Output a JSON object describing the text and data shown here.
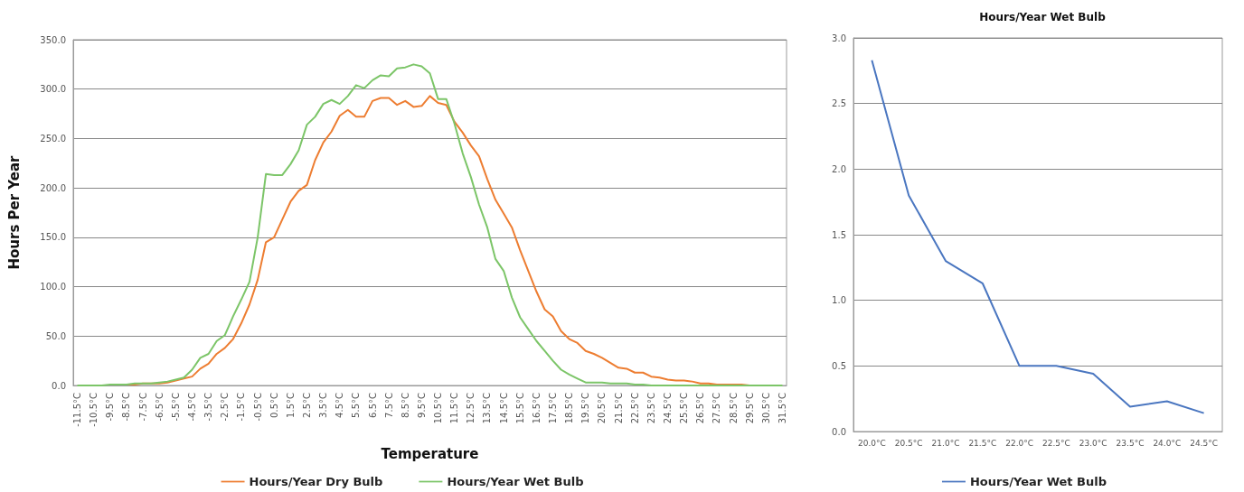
{
  "chart_data": [
    {
      "type": "line",
      "xlabel": "Temperature",
      "ylabel": "Hours Per Year",
      "categories": [
        "-11.5°C",
        null,
        "-10.5°C",
        null,
        "-9.5°C",
        null,
        "-8.5°C",
        null,
        "-7.5°C",
        null,
        "-6.5°C",
        null,
        "-5.5°C",
        null,
        "-4.5°C",
        null,
        "-3.5°C",
        null,
        "-2.5°C",
        null,
        "-1.5°C",
        null,
        "-0.5°C",
        null,
        "0.5°C",
        null,
        "1.5°C",
        null,
        "2.5°C",
        null,
        "3.5°C",
        null,
        "4.5°C",
        null,
        "5.5°C",
        null,
        "6.5°C",
        null,
        "7.5°C",
        null,
        "8.5°C",
        null,
        "9.5°C",
        null,
        "10.5°C",
        null,
        "11.5°C",
        null,
        "12.5°C",
        null,
        "13.5°C",
        null,
        "14.5°C",
        null,
        "15.5°C",
        null,
        "16.5°C",
        null,
        "17.5°C",
        null,
        "18.5°C",
        null,
        "19.5°C",
        null,
        "20.5°C",
        null,
        "21.5°C",
        null,
        "22.5°C",
        null,
        "23.5°C",
        null,
        "24.5°C",
        null,
        "25.5°C",
        null,
        "26.5°C",
        null,
        "27.5°C",
        null,
        "28.5°C",
        null,
        "29.5°C",
        null,
        "30.5°C",
        null,
        "31.5°C"
      ],
      "series": [
        {
          "name": "Hours/Year Dry Bulb",
          "color": "#ed7d31",
          "values": [
            null,
            null,
            null,
            null,
            null,
            null,
            1,
            1,
            2,
            2,
            2,
            3,
            5,
            7,
            9,
            17,
            22,
            32,
            38,
            47,
            63,
            82,
            107,
            145,
            150,
            168,
            186,
            197,
            203,
            228,
            246,
            257,
            273,
            279,
            272,
            272,
            288,
            291,
            291,
            284,
            288,
            282,
            283,
            293,
            286,
            284,
            267,
            256,
            243,
            232,
            209,
            188,
            174,
            160,
            137,
            116,
            95,
            77,
            70,
            55,
            47,
            43,
            35,
            32,
            28,
            23,
            18,
            17,
            13,
            13,
            9,
            8,
            6,
            5,
            5,
            4,
            2,
            2,
            1,
            1,
            1,
            1,
            0,
            0,
            null,
            null,
            null
          ]
        },
        {
          "name": "Hours/Year Wet Bulb",
          "color": "#7cc568",
          "values": [
            0,
            0,
            0,
            0,
            1,
            1,
            1,
            2,
            2,
            2,
            3,
            4,
            6,
            8,
            16,
            28,
            32,
            45,
            51,
            70,
            87,
            105,
            150,
            214,
            213,
            213,
            224,
            238,
            264,
            272,
            285,
            289,
            285,
            293,
            304,
            301,
            309,
            314,
            313,
            321,
            322,
            325,
            323,
            316,
            290,
            290,
            265,
            235,
            211,
            183,
            160,
            128,
            116,
            89,
            69,
            57,
            45,
            35,
            25,
            16,
            11,
            7,
            3,
            3,
            3,
            2,
            2,
            2,
            1,
            1,
            0,
            0,
            0,
            0,
            0,
            0,
            0,
            0,
            0,
            0,
            0,
            0,
            0,
            0,
            0,
            0,
            0
          ]
        }
      ],
      "ylim": [
        0,
        350
      ],
      "yticks": [
        {
          "value": 0,
          "label": "0.0"
        },
        {
          "value": 50,
          "label": "50.0"
        },
        {
          "value": 100,
          "label": "100.0"
        },
        {
          "value": 150,
          "label": "150.0"
        },
        {
          "value": 200,
          "label": "200.0"
        },
        {
          "value": 250,
          "label": "250.0"
        },
        {
          "value": 300,
          "label": "300.0"
        },
        {
          "value": 350,
          "label": "350.0"
        }
      ],
      "grid": "y",
      "legend": "bottom",
      "marker": "none"
    },
    {
      "type": "line",
      "title": "Hours/Year Wet Bulb",
      "categories": [
        "20.0°C",
        "20.5°C",
        "21.0°C",
        "21.5°C",
        "22.0°C",
        "22.5°C",
        "23.0°C",
        "23.5°C",
        "24.0°C",
        "24.5°C"
      ],
      "series": [
        {
          "name": "Hours/Year Wet Bulb",
          "color": "#4a76c0",
          "values": [
            2.83,
            1.8,
            1.3,
            1.13,
            0.5,
            0.5,
            0.44,
            0.19,
            0.23,
            0.14
          ]
        }
      ],
      "ylim": [
        0,
        3
      ],
      "yticks": [
        {
          "value": 0,
          "label": "0.0"
        },
        {
          "value": 0.5,
          "label": "0.5"
        },
        {
          "value": 1,
          "label": "1.0"
        },
        {
          "value": 1.5,
          "label": "1.5"
        },
        {
          "value": 2,
          "label": "2.0"
        },
        {
          "value": 2.5,
          "label": "2.5"
        },
        {
          "value": 3,
          "label": "3.0"
        }
      ],
      "grid": "y",
      "legend": "bottom",
      "marker": "none"
    }
  ]
}
